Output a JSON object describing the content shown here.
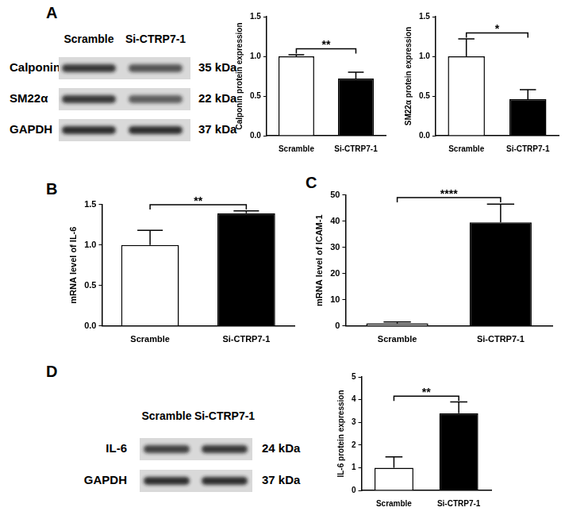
{
  "panel_labels": [
    "A",
    "B",
    "C",
    "D"
  ],
  "blots": [
    {
      "panel": "A",
      "lanes": [
        "Scramble",
        "Si-CTRP7-1"
      ],
      "rows": [
        {
          "protein": "Calponin",
          "size": "35 kDa"
        },
        {
          "protein": "SM22α",
          "size": "22 kDa"
        },
        {
          "protein": "GAPDH",
          "size": "37 kDa"
        }
      ]
    },
    {
      "panel": "D",
      "lanes": [
        "Scramble",
        "Si-CTRP7-1"
      ],
      "rows": [
        {
          "protein": "IL-6",
          "size": "24 kDa"
        },
        {
          "protein": "GAPDH",
          "size": "37 kDa"
        }
      ]
    }
  ],
  "chart_data": [
    {
      "panel": "A",
      "type": "bar",
      "y_label": "Calponin protein expression",
      "categories": [
        "Scramble",
        "Si-CTRP7-1"
      ],
      "values": [
        1.0,
        0.72
      ],
      "errors": [
        0.02,
        0.08
      ],
      "colors": [
        "#ffffff",
        "#000000"
      ],
      "significance": "**",
      "ylim": [
        0,
        1.5
      ],
      "yticks": [
        {
          "value": 0,
          "label": "0.0"
        },
        {
          "value": 0.5,
          "label": "0.5"
        },
        {
          "value": 1,
          "label": "1.0"
        },
        {
          "value": 1.5,
          "label": "1.5"
        }
      ]
    },
    {
      "panel": "A",
      "type": "bar",
      "y_label": "SM22α protein expression",
      "categories": [
        "Scramble",
        "Si-CTRP7-1"
      ],
      "values": [
        1.0,
        0.46
      ],
      "errors": [
        0.22,
        0.12
      ],
      "colors": [
        "#ffffff",
        "#000000"
      ],
      "significance": "*",
      "ylim": [
        0,
        1.5
      ],
      "yticks": [
        {
          "value": 0,
          "label": "0.0"
        },
        {
          "value": 0.5,
          "label": "0.5"
        },
        {
          "value": 1,
          "label": "1.0"
        },
        {
          "value": 1.5,
          "label": "1.5"
        }
      ]
    },
    {
      "panel": "B",
      "type": "bar",
      "y_label": "mRNA level of IL-6",
      "categories": [
        "Scramble",
        "Si-CTRP7-1"
      ],
      "values": [
        1.0,
        1.39
      ],
      "errors": [
        0.18,
        0.03
      ],
      "colors": [
        "#ffffff",
        "#000000"
      ],
      "significance": "**",
      "ylim": [
        0,
        1.5
      ],
      "yticks": [
        {
          "value": 0,
          "label": "0.0"
        },
        {
          "value": 0.5,
          "label": "0.5"
        },
        {
          "value": 1,
          "label": "1.0"
        },
        {
          "value": 1.5,
          "label": "1.5"
        }
      ]
    },
    {
      "panel": "C",
      "type": "bar",
      "y_label": "mRNA level of ICAM-1",
      "categories": [
        "Scramble",
        "Si-CTRP7-1"
      ],
      "values": [
        1.0,
        39.5
      ],
      "errors": [
        0.5,
        7.0
      ],
      "colors": [
        "#ffffff",
        "#000000"
      ],
      "significance": "****",
      "ylim": [
        0,
        50
      ],
      "yticks": [
        0,
        10,
        20,
        30,
        40,
        50
      ]
    },
    {
      "panel": "D",
      "type": "bar",
      "y_label": "IL-6 protein expression",
      "categories": [
        "Scramble",
        "Si-CTRP7-1"
      ],
      "values": [
        1.0,
        3.4
      ],
      "errors": [
        0.48,
        0.5
      ],
      "colors": [
        "#ffffff",
        "#000000"
      ],
      "significance": "**",
      "ylim": [
        0,
        5
      ],
      "yticks": [
        0,
        1,
        2,
        3,
        4,
        5
      ]
    }
  ]
}
